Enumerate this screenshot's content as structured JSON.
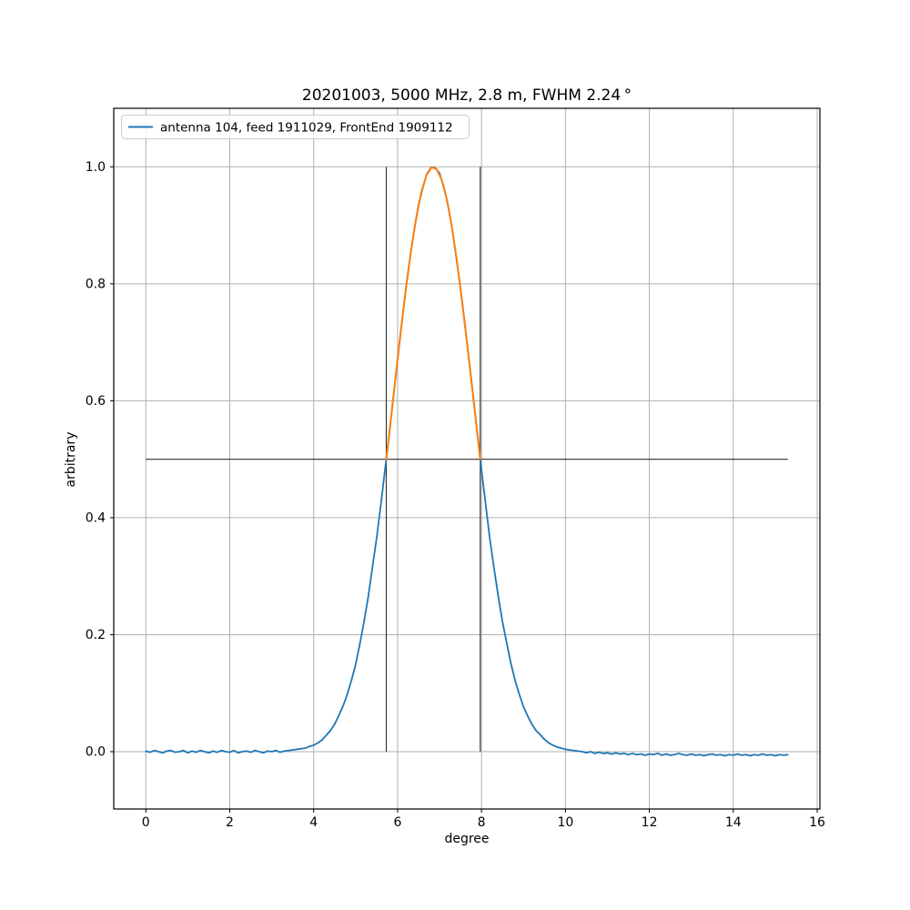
{
  "figure": {
    "background": "#ffffff",
    "frame_color": "#000000",
    "grid_color": "#b0b0b0",
    "marker_line_color": "#2e2e2e"
  },
  "chart_data": {
    "type": "line",
    "title": "20201003, 5000 MHz, 2.8 m, FWHM 2.24 °",
    "xlabel": "degree",
    "ylabel": "arbitrary",
    "xlim": [
      -0.765,
      16.065
    ],
    "ylim": [
      -0.098,
      1.1
    ],
    "grid": true,
    "x_ticks": [
      0,
      2,
      4,
      6,
      8,
      10,
      12,
      14,
      16
    ],
    "x_tick_labels": [
      "0",
      "2",
      "4",
      "6",
      "8",
      "10",
      "12",
      "14",
      "16"
    ],
    "y_ticks": [
      0.0,
      0.2,
      0.4,
      0.6,
      0.8,
      1.0
    ],
    "y_tick_labels": [
      "0.0",
      "0.2",
      "0.4",
      "0.6",
      "0.8",
      "1.0"
    ],
    "legend": {
      "position": "upper left",
      "entries": [
        {
          "label": "antenna 104, feed 1911029, FrontEnd 1909112",
          "color": "#1f77b4"
        }
      ]
    },
    "fwhm_deg": 2.24,
    "markers": {
      "half_power_line": {
        "y": 0.5,
        "x_range": [
          0.0,
          15.3
        ],
        "color": "#2e2e2e"
      },
      "fwhm_left": {
        "x": 5.73,
        "y_range": [
          0.0,
          1.0
        ],
        "color": "#2e2e2e"
      },
      "fwhm_right": {
        "x": 7.97,
        "y_range": [
          0.0,
          1.0
        ],
        "color": "#2e2e2e"
      }
    },
    "series": [
      {
        "name": "measured-beam",
        "color": "#1f77b4",
        "width": 1.8,
        "points": [
          [
            0.0,
            0.001
          ],
          [
            0.1,
            -0.001
          ],
          [
            0.2,
            0.002
          ],
          [
            0.3,
            0.0
          ],
          [
            0.4,
            -0.002
          ],
          [
            0.5,
            0.001
          ],
          [
            0.6,
            0.002
          ],
          [
            0.7,
            -0.001
          ],
          [
            0.8,
            0.0
          ],
          [
            0.9,
            0.002
          ],
          [
            1.0,
            -0.002
          ],
          [
            1.1,
            0.001
          ],
          [
            1.2,
            -0.001
          ],
          [
            1.3,
            0.002
          ],
          [
            1.4,
            0.0
          ],
          [
            1.5,
            -0.002
          ],
          [
            1.6,
            0.001
          ],
          [
            1.7,
            -0.001
          ],
          [
            1.8,
            0.002
          ],
          [
            1.9,
            0.0
          ],
          [
            2.0,
            -0.001
          ],
          [
            2.1,
            0.002
          ],
          [
            2.2,
            -0.002
          ],
          [
            2.3,
            0.0
          ],
          [
            2.4,
            0.001
          ],
          [
            2.5,
            -0.001
          ],
          [
            2.6,
            0.002
          ],
          [
            2.7,
            0.0
          ],
          [
            2.8,
            -0.002
          ],
          [
            2.9,
            0.001
          ],
          [
            3.0,
            0.0
          ],
          [
            3.1,
            0.002
          ],
          [
            3.2,
            -0.001
          ],
          [
            3.3,
            0.001
          ],
          [
            3.4,
            0.002
          ],
          [
            3.5,
            0.003
          ],
          [
            3.6,
            0.004
          ],
          [
            3.7,
            0.005
          ],
          [
            3.8,
            0.006
          ],
          [
            3.9,
            0.009
          ],
          [
            4.0,
            0.011
          ],
          [
            4.1,
            0.015
          ],
          [
            4.2,
            0.02
          ],
          [
            4.3,
            0.028
          ],
          [
            4.4,
            0.036
          ],
          [
            4.5,
            0.047
          ],
          [
            4.6,
            0.062
          ],
          [
            4.7,
            0.078
          ],
          [
            4.8,
            0.098
          ],
          [
            4.9,
            0.122
          ],
          [
            5.0,
            0.149
          ],
          [
            5.1,
            0.184
          ],
          [
            5.2,
            0.222
          ],
          [
            5.3,
            0.265
          ],
          [
            5.4,
            0.315
          ],
          [
            5.5,
            0.365
          ],
          [
            5.6,
            0.422
          ],
          [
            5.7,
            0.482
          ],
          [
            5.8,
            0.542
          ],
          [
            5.9,
            0.607
          ],
          [
            6.0,
            0.671
          ],
          [
            6.1,
            0.733
          ],
          [
            6.2,
            0.794
          ],
          [
            6.3,
            0.846
          ],
          [
            6.4,
            0.894
          ],
          [
            6.5,
            0.935
          ],
          [
            6.6,
            0.964
          ],
          [
            6.7,
            0.988
          ],
          [
            6.8,
            0.999
          ],
          [
            6.9,
            0.998
          ],
          [
            7.0,
            0.989
          ],
          [
            7.1,
            0.966
          ],
          [
            7.2,
            0.935
          ],
          [
            7.3,
            0.894
          ],
          [
            7.4,
            0.844
          ],
          [
            7.5,
            0.792
          ],
          [
            7.6,
            0.733
          ],
          [
            7.7,
            0.671
          ],
          [
            7.8,
            0.609
          ],
          [
            7.9,
            0.544
          ],
          [
            8.0,
            0.482
          ],
          [
            8.1,
            0.422
          ],
          [
            8.2,
            0.363
          ],
          [
            8.3,
            0.313
          ],
          [
            8.4,
            0.265
          ],
          [
            8.5,
            0.222
          ],
          [
            8.6,
            0.186
          ],
          [
            8.7,
            0.151
          ],
          [
            8.8,
            0.122
          ],
          [
            8.9,
            0.098
          ],
          [
            9.0,
            0.077
          ],
          [
            9.1,
            0.061
          ],
          [
            9.2,
            0.047
          ],
          [
            9.3,
            0.036
          ],
          [
            9.4,
            0.029
          ],
          [
            9.5,
            0.021
          ],
          [
            9.6,
            0.015
          ],
          [
            9.7,
            0.011
          ],
          [
            9.8,
            0.008
          ],
          [
            9.9,
            0.006
          ],
          [
            10.0,
            0.004
          ],
          [
            10.1,
            0.003
          ],
          [
            10.2,
            0.002
          ],
          [
            10.3,
            0.001
          ],
          [
            10.4,
            0.0
          ],
          [
            10.5,
            -0.002
          ],
          [
            10.6,
            0.0
          ],
          [
            10.7,
            -0.003
          ],
          [
            10.8,
            -0.001
          ],
          [
            10.9,
            -0.003
          ],
          [
            11.0,
            -0.002
          ],
          [
            11.1,
            -0.004
          ],
          [
            11.2,
            -0.002
          ],
          [
            11.3,
            -0.004
          ],
          [
            11.4,
            -0.003
          ],
          [
            11.5,
            -0.005
          ],
          [
            11.6,
            -0.003
          ],
          [
            11.7,
            -0.005
          ],
          [
            11.8,
            -0.004
          ],
          [
            11.9,
            -0.006
          ],
          [
            12.0,
            -0.004
          ],
          [
            12.1,
            -0.005
          ],
          [
            12.2,
            -0.003
          ],
          [
            12.3,
            -0.006
          ],
          [
            12.4,
            -0.004
          ],
          [
            12.5,
            -0.006
          ],
          [
            12.6,
            -0.005
          ],
          [
            12.7,
            -0.003
          ],
          [
            12.8,
            -0.005
          ],
          [
            12.9,
            -0.006
          ],
          [
            13.0,
            -0.004
          ],
          [
            13.1,
            -0.006
          ],
          [
            13.2,
            -0.005
          ],
          [
            13.3,
            -0.007
          ],
          [
            13.4,
            -0.005
          ],
          [
            13.5,
            -0.004
          ],
          [
            13.6,
            -0.006
          ],
          [
            13.7,
            -0.005
          ],
          [
            13.8,
            -0.007
          ],
          [
            13.9,
            -0.005
          ],
          [
            14.0,
            -0.006
          ],
          [
            14.1,
            -0.004
          ],
          [
            14.2,
            -0.006
          ],
          [
            14.3,
            -0.005
          ],
          [
            14.4,
            -0.007
          ],
          [
            14.5,
            -0.005
          ],
          [
            14.6,
            -0.006
          ],
          [
            14.7,
            -0.004
          ],
          [
            14.8,
            -0.006
          ],
          [
            14.9,
            -0.005
          ],
          [
            15.0,
            -0.007
          ],
          [
            15.1,
            -0.005
          ],
          [
            15.2,
            -0.006
          ],
          [
            15.3,
            -0.005
          ]
        ]
      },
      {
        "name": "fwhm-fit-segment",
        "color": "#ff7f0e",
        "width": 2.0,
        "points": [
          [
            5.73,
            0.5
          ],
          [
            5.85,
            0.575
          ],
          [
            5.97,
            0.652
          ],
          [
            6.09,
            0.727
          ],
          [
            6.21,
            0.798
          ],
          [
            6.33,
            0.861
          ],
          [
            6.45,
            0.915
          ],
          [
            6.57,
            0.958
          ],
          [
            6.69,
            0.986
          ],
          [
            6.81,
            0.999
          ],
          [
            6.93,
            0.996
          ],
          [
            7.05,
            0.978
          ],
          [
            7.17,
            0.945
          ],
          [
            7.29,
            0.899
          ],
          [
            7.41,
            0.841
          ],
          [
            7.53,
            0.774
          ],
          [
            7.65,
            0.702
          ],
          [
            7.77,
            0.626
          ],
          [
            7.89,
            0.55
          ],
          [
            7.97,
            0.5
          ]
        ]
      }
    ]
  }
}
